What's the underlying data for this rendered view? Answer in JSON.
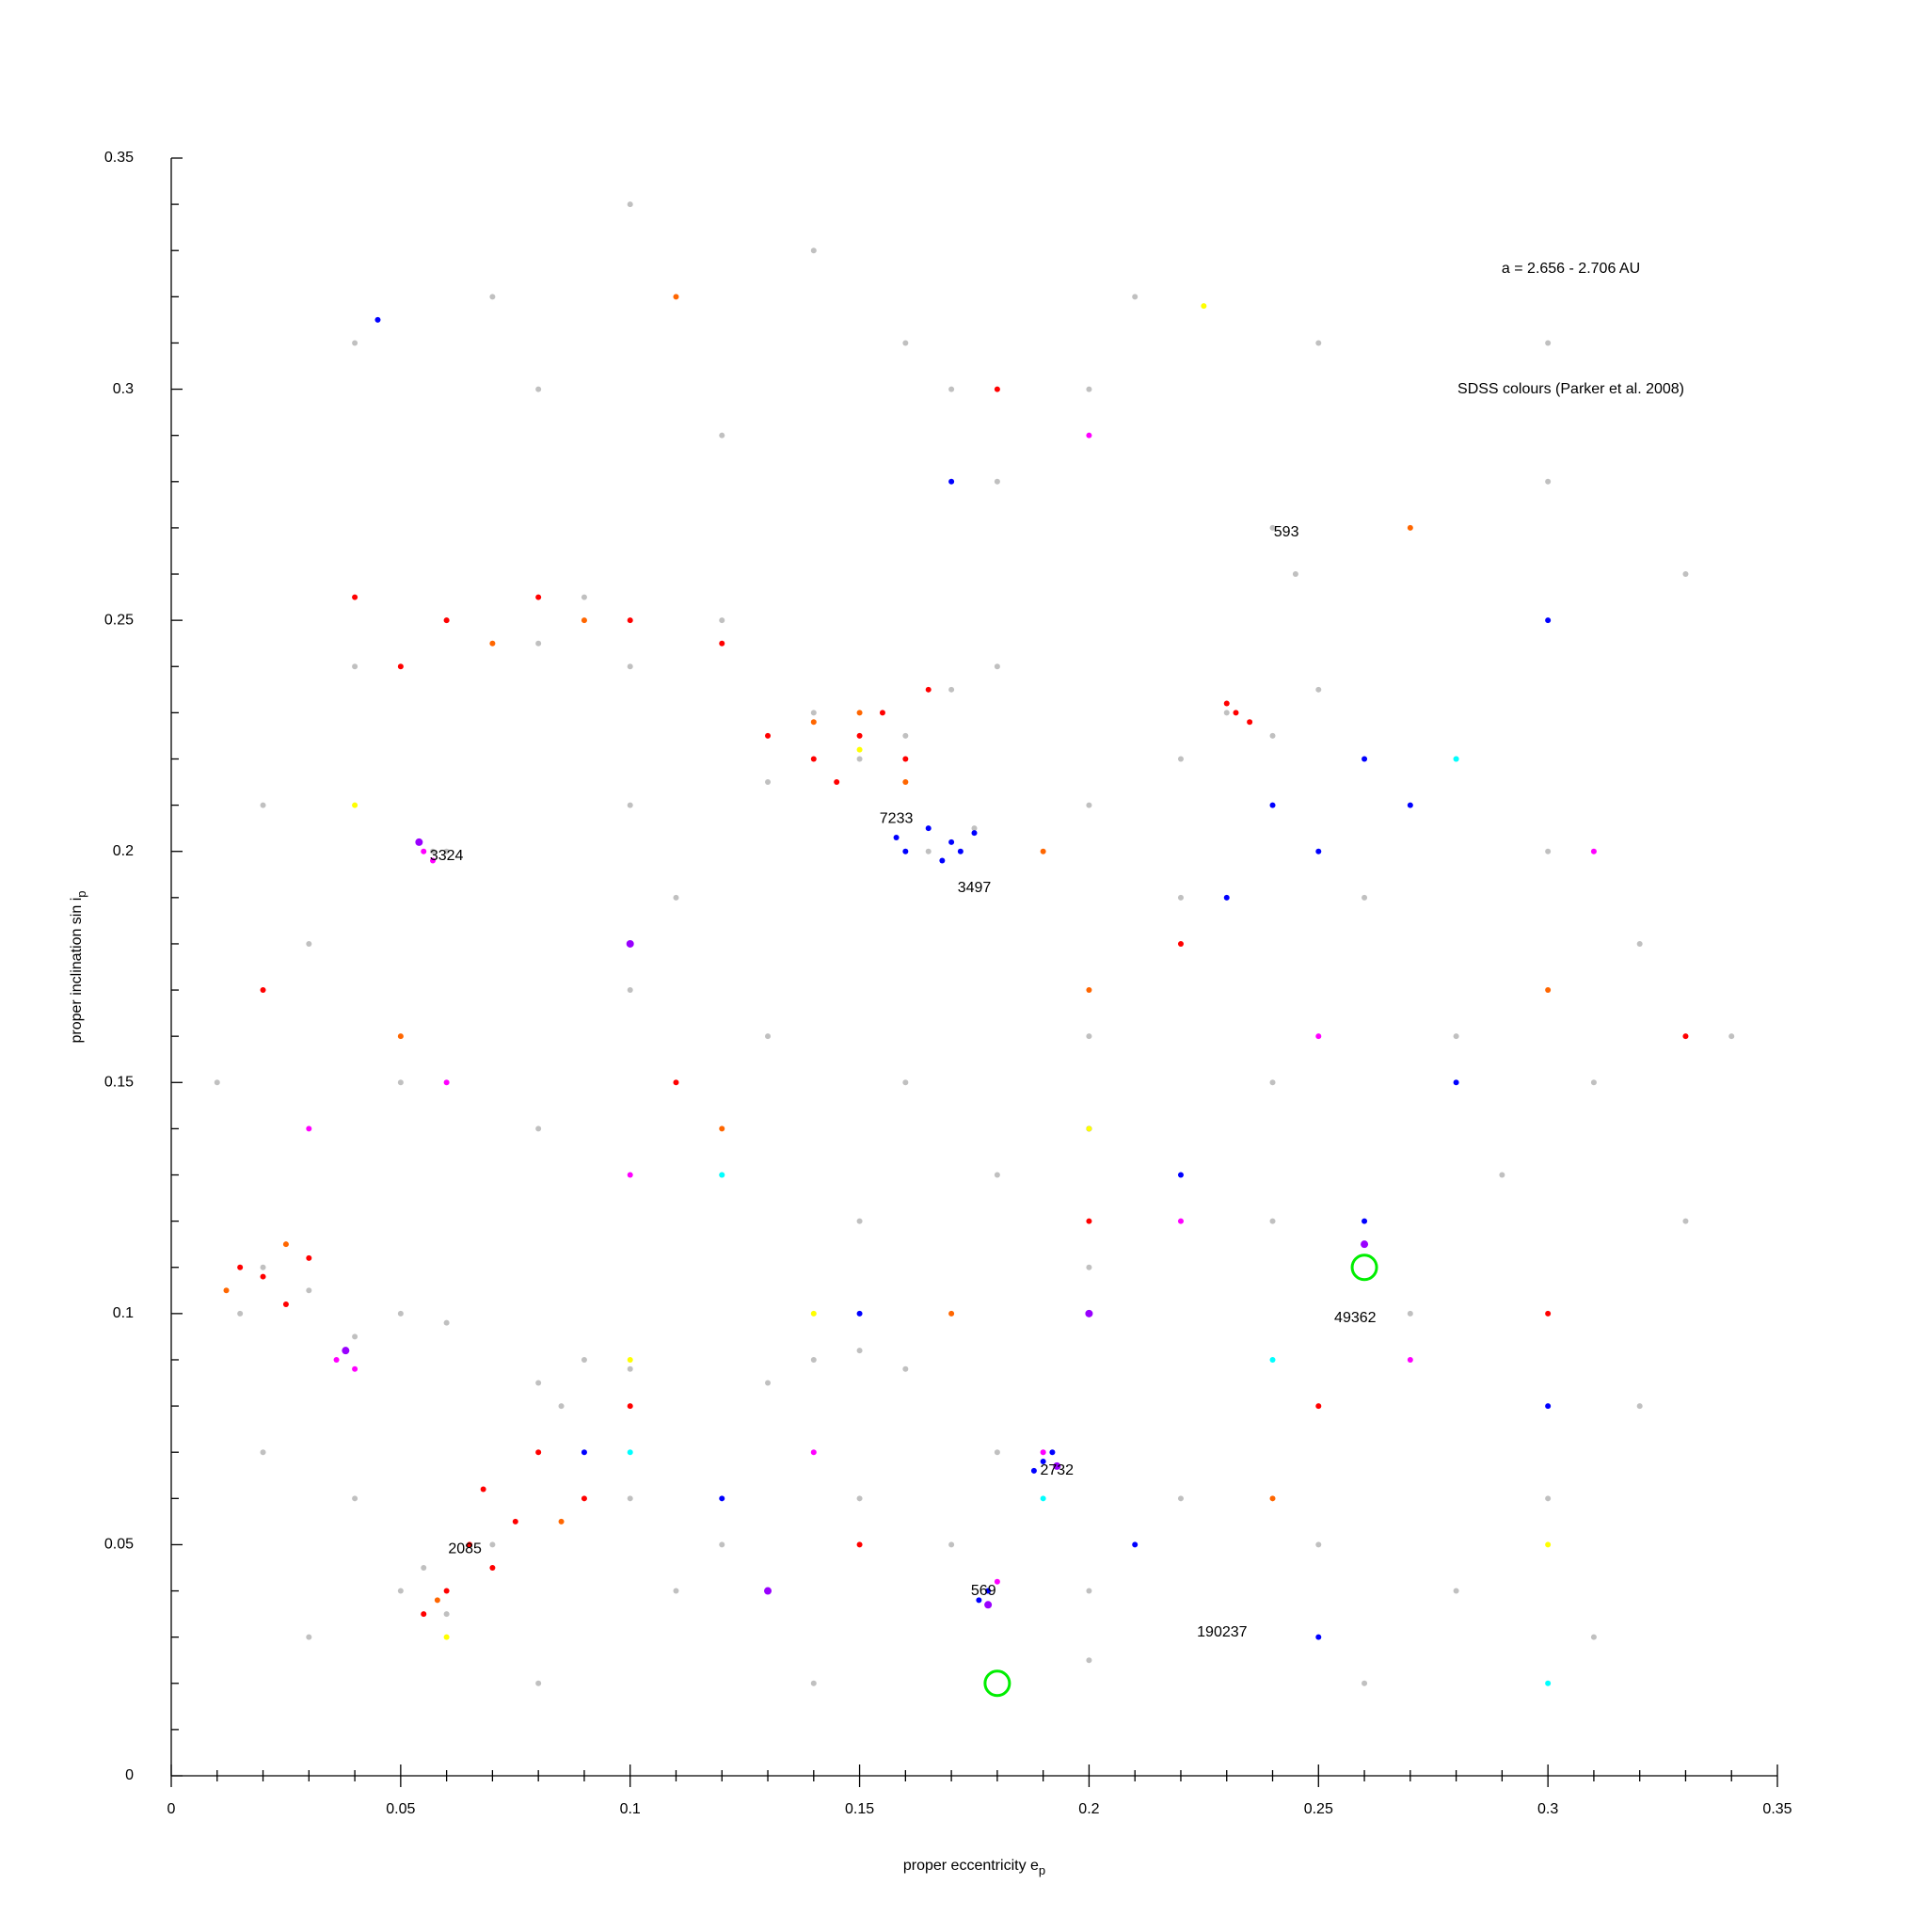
{
  "chart_data": {
    "type": "scatter",
    "x_label": {
      "text": "proper eccentricity e",
      "subscript": "p"
    },
    "y_label": {
      "text": "proper inclination sin i",
      "subscript": "p"
    },
    "xlim": [
      0,
      0.35
    ],
    "ylim": [
      0,
      0.35
    ],
    "xticks": [
      0,
      0.05,
      0.1,
      0.15,
      0.2,
      0.25,
      0.3,
      0.35
    ],
    "yticks": [
      0,
      0.05,
      0.1,
      0.15,
      0.2,
      0.25,
      0.3,
      0.35
    ],
    "xminorticks": [
      0.01,
      0.02,
      0.03,
      0.04,
      0.06,
      0.07,
      0.08,
      0.09,
      0.11,
      0.12,
      0.13,
      0.14,
      0.16,
      0.17,
      0.18,
      0.19,
      0.21,
      0.22,
      0.23,
      0.24,
      0.26,
      0.27,
      0.28,
      0.29,
      0.31,
      0.32,
      0.33,
      0.34
    ],
    "yminorticks": [
      0.01,
      0.02,
      0.03,
      0.04,
      0.06,
      0.07,
      0.08,
      0.09,
      0.11,
      0.12,
      0.13,
      0.14,
      0.16,
      0.17,
      0.18,
      0.19,
      0.21,
      0.22,
      0.23,
      0.24,
      0.26,
      0.27,
      0.28,
      0.29,
      0.31,
      0.32,
      0.33,
      0.34
    ],
    "grid": false,
    "series": [
      {
        "color": "#c0c0c0",
        "marker": "dot",
        "marker_size": 3,
        "x": [
          0.02,
          0.03,
          0.015,
          0.04,
          0.05,
          0.06,
          0.08,
          0.09,
          0.1,
          0.085,
          0.14,
          0.13,
          0.15,
          0.16,
          0.05,
          0.06,
          0.055,
          0.07,
          0.04,
          0.1,
          0.12,
          0.11,
          0.15,
          0.17,
          0.2,
          0.18,
          0.22,
          0.25,
          0.28,
          0.3,
          0.32,
          0.27,
          0.24,
          0.2,
          0.18,
          0.15,
          0.12,
          0.08,
          0.05,
          0.03,
          0.06,
          0.1,
          0.13,
          0.16,
          0.2,
          0.24,
          0.28,
          0.31,
          0.34,
          0.06,
          0.08,
          0.09,
          0.1,
          0.12,
          0.04,
          0.14,
          0.15,
          0.16,
          0.17,
          0.13,
          0.18,
          0.165,
          0.175,
          0.23,
          0.24,
          0.22,
          0.25,
          0.24,
          0.245,
          0.17,
          0.18,
          0.16,
          0.12,
          0.08,
          0.04,
          0.2,
          0.25,
          0.3,
          0.33,
          0.28,
          0.3,
          0.32,
          0.26,
          0.22,
          0.2,
          0.1,
          0.11,
          0.02,
          0.01,
          0.02,
          0.03,
          0.08,
          0.14,
          0.2,
          0.26,
          0.31,
          0.33,
          0.29,
          0.19,
          0.178,
          0.057,
          0.3,
          0.07,
          0.14,
          0.21,
          0.1
        ],
        "y": [
          0.11,
          0.105,
          0.1,
          0.095,
          0.1,
          0.098,
          0.085,
          0.09,
          0.088,
          0.08,
          0.09,
          0.085,
          0.092,
          0.088,
          0.04,
          0.035,
          0.045,
          0.05,
          0.06,
          0.06,
          0.05,
          0.04,
          0.06,
          0.05,
          0.04,
          0.07,
          0.06,
          0.05,
          0.04,
          0.06,
          0.08,
          0.1,
          0.12,
          0.11,
          0.13,
          0.12,
          0.13,
          0.14,
          0.15,
          0.18,
          0.2,
          0.17,
          0.16,
          0.15,
          0.16,
          0.15,
          0.16,
          0.15,
          0.16,
          0.25,
          0.245,
          0.255,
          0.24,
          0.25,
          0.24,
          0.23,
          0.22,
          0.225,
          0.235,
          0.215,
          0.24,
          0.2,
          0.205,
          0.23,
          0.225,
          0.22,
          0.235,
          0.27,
          0.26,
          0.3,
          0.28,
          0.31,
          0.29,
          0.3,
          0.31,
          0.3,
          0.31,
          0.28,
          0.26,
          0.22,
          0.2,
          0.18,
          0.19,
          0.19,
          0.21,
          0.21,
          0.19,
          0.21,
          0.15,
          0.07,
          0.03,
          0.02,
          0.02,
          0.025,
          0.02,
          0.03,
          0.12,
          0.13,
          0.07,
          0.04,
          0.2,
          0.31,
          0.32,
          0.33,
          0.32,
          0.34
        ]
      },
      {
        "color": "#ff0000",
        "marker": "dot",
        "marker_size": 3,
        "x": [
          0.02,
          0.015,
          0.025,
          0.03,
          0.06,
          0.055,
          0.065,
          0.07,
          0.075,
          0.08,
          0.09,
          0.068,
          0.14,
          0.15,
          0.155,
          0.145,
          0.16,
          0.13,
          0.165,
          0.232,
          0.235,
          0.23,
          0.06,
          0.08,
          0.1,
          0.05,
          0.12,
          0.04,
          0.11,
          0.2,
          0.25,
          0.3,
          0.18,
          0.02,
          0.15,
          0.1,
          0.22,
          0.33
        ],
        "y": [
          0.108,
          0.11,
          0.102,
          0.112,
          0.04,
          0.035,
          0.05,
          0.045,
          0.055,
          0.07,
          0.06,
          0.062,
          0.22,
          0.225,
          0.23,
          0.215,
          0.22,
          0.225,
          0.235,
          0.23,
          0.228,
          0.232,
          0.25,
          0.255,
          0.25,
          0.24,
          0.245,
          0.255,
          0.15,
          0.12,
          0.08,
          0.1,
          0.3,
          0.17,
          0.05,
          0.08,
          0.18,
          0.16
        ]
      },
      {
        "color": "#ff6600",
        "marker": "dot",
        "marker_size": 3,
        "x": [
          0.15,
          0.14,
          0.16,
          0.012,
          0.025,
          0.09,
          0.07,
          0.058,
          0.085,
          0.2,
          0.12,
          0.27,
          0.3,
          0.05,
          0.17,
          0.24,
          0.11,
          0.19
        ],
        "y": [
          0.23,
          0.228,
          0.215,
          0.105,
          0.115,
          0.25,
          0.245,
          0.038,
          0.055,
          0.17,
          0.14,
          0.27,
          0.17,
          0.16,
          0.1,
          0.06,
          0.32,
          0.2
        ]
      },
      {
        "color": "#0000ff",
        "marker": "dot",
        "marker_size": 3,
        "x": [
          0.16,
          0.165,
          0.17,
          0.168,
          0.172,
          0.175,
          0.158,
          0.19,
          0.192,
          0.188,
          0.178,
          0.176,
          0.24,
          0.25,
          0.26,
          0.23,
          0.27,
          0.2,
          0.22,
          0.26,
          0.28,
          0.15,
          0.12,
          0.09,
          0.3,
          0.17,
          0.045,
          0.3,
          0.21,
          0.25
        ],
        "y": [
          0.2,
          0.205,
          0.202,
          0.198,
          0.2,
          0.204,
          0.203,
          0.068,
          0.07,
          0.066,
          0.04,
          0.038,
          0.21,
          0.2,
          0.22,
          0.19,
          0.21,
          0.14,
          0.13,
          0.12,
          0.15,
          0.1,
          0.06,
          0.07,
          0.08,
          0.28,
          0.315,
          0.25,
          0.05,
          0.03
        ]
      },
      {
        "color": "#ff00ff",
        "marker": "dot",
        "marker_size": 3,
        "x": [
          0.055,
          0.057,
          0.036,
          0.04,
          0.18,
          0.19,
          0.22,
          0.1,
          0.27,
          0.06,
          0.14,
          0.31,
          0.2,
          0.03,
          0.25
        ],
        "y": [
          0.2,
          0.198,
          0.09,
          0.088,
          0.042,
          0.07,
          0.12,
          0.13,
          0.09,
          0.15,
          0.07,
          0.2,
          0.29,
          0.14,
          0.16
        ]
      },
      {
        "color": "#9900ff",
        "marker": "dot",
        "marker_size": 4,
        "x": [
          0.054,
          0.178,
          0.193,
          0.038,
          0.2,
          0.26,
          0.1,
          0.13
        ],
        "y": [
          0.202,
          0.037,
          0.067,
          0.092,
          0.1,
          0.115,
          0.18,
          0.04
        ]
      },
      {
        "color": "#ffff00",
        "marker": "dot",
        "marker_size": 3,
        "x": [
          0.15,
          0.06,
          0.225,
          0.14,
          0.2,
          0.04,
          0.3,
          0.1
        ],
        "y": [
          0.222,
          0.03,
          0.318,
          0.1,
          0.14,
          0.21,
          0.05,
          0.09
        ]
      },
      {
        "color": "#00ffff",
        "marker": "dot",
        "marker_size": 3,
        "x": [
          0.19,
          0.28,
          0.24,
          0.1,
          0.3,
          0.12
        ],
        "y": [
          0.06,
          0.22,
          0.09,
          0.07,
          0.02,
          0.13
        ]
      },
      {
        "color": "#00ee00",
        "marker": "open-circle",
        "marker_size": 13,
        "x": [
          0.18,
          0.26
        ],
        "y": [
          0.02,
          0.11
        ]
      }
    ],
    "annotations": [
      {
        "text": "a = 2.656 - 2.706 AU",
        "x": 0.305,
        "y": 0.326
      },
      {
        "text": "SDSS colours (Parker et al. 2008)",
        "x": 0.305,
        "y": 0.3
      },
      {
        "text": "593",
        "x": 0.243,
        "y": 0.269
      },
      {
        "text": "7233",
        "x": 0.158,
        "y": 0.207
      },
      {
        "text": "3497",
        "x": 0.175,
        "y": 0.192
      },
      {
        "text": "3324",
        "x": 0.06,
        "y": 0.199
      },
      {
        "text": "49362",
        "x": 0.258,
        "y": 0.099
      },
      {
        "text": "2085",
        "x": 0.064,
        "y": 0.049
      },
      {
        "text": "569",
        "x": 0.177,
        "y": 0.04
      },
      {
        "text": "2732",
        "x": 0.193,
        "y": 0.066
      },
      {
        "text": "190237",
        "x": 0.229,
        "y": 0.031
      }
    ]
  }
}
